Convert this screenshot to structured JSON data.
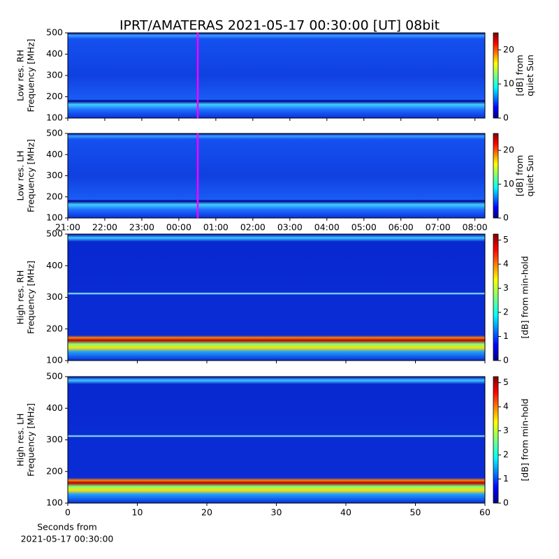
{
  "title": "IPRT/AMATERAS 2021-05-17 00:30:00 [UT]   08bit",
  "chart_data": [
    {
      "type": "heatmap",
      "ylabel": [
        "Low res. RH",
        "Frequency [MHz]"
      ],
      "ylim": [
        100,
        500
      ],
      "yticks": [
        100,
        200,
        300,
        400,
        500
      ],
      "colorbar_label": [
        "[dB] from",
        "quiet Sun"
      ],
      "clim": [
        0,
        25
      ],
      "cticks": [
        0,
        10,
        20
      ]
    },
    {
      "type": "heatmap",
      "ylabel": [
        "Low res. LH",
        "Frequency [MHz]"
      ],
      "ylim": [
        100,
        500
      ],
      "yticks": [
        100,
        200,
        300,
        400,
        500
      ],
      "colorbar_label": [
        "[dB] from",
        "quiet Sun"
      ],
      "clim": [
        0,
        25
      ],
      "cticks": [
        0,
        10,
        20
      ],
      "xlim": [
        21,
        32.27
      ],
      "xticks": [
        {
          "value": 21,
          "label": "21:00"
        },
        {
          "value": 22,
          "label": "22:00"
        },
        {
          "value": 23,
          "label": "23:00"
        },
        {
          "value": 24,
          "label": "00:00"
        },
        {
          "value": 25,
          "label": "01:00"
        },
        {
          "value": 26,
          "label": "02:00"
        },
        {
          "value": 27,
          "label": "03:00"
        },
        {
          "value": 28,
          "label": "04:00"
        },
        {
          "value": 29,
          "label": "05:00"
        },
        {
          "value": 30,
          "label": "06:00"
        },
        {
          "value": 31,
          "label": "07:00"
        },
        {
          "value": 32,
          "label": "08:00"
        }
      ]
    },
    {
      "type": "heatmap",
      "ylabel": [
        "High res. RH",
        "Frequency [MHz]"
      ],
      "ylim": [
        100,
        500
      ],
      "yticks": [
        100,
        200,
        300,
        400,
        500
      ],
      "colorbar_label": [
        "[dB] from min-hold"
      ],
      "clim": [
        0,
        5.25
      ],
      "cticks": [
        0,
        1,
        2,
        3,
        4,
        5
      ]
    },
    {
      "type": "heatmap",
      "ylabel": [
        "High res. LH",
        "Frequency [MHz]"
      ],
      "ylim": [
        100,
        500
      ],
      "yticks": [
        100,
        200,
        300,
        400,
        500
      ],
      "colorbar_label": [
        "[dB] from min-hold"
      ],
      "clim": [
        0,
        5.25
      ],
      "cticks": [
        0,
        1,
        2,
        3,
        4,
        5
      ],
      "xlim": [
        0,
        60
      ],
      "xticks": [
        0,
        10,
        20,
        30,
        40,
        50,
        60
      ],
      "xlabel": [
        "Seconds from",
        "2021-05-17 00:30:00"
      ]
    }
  ]
}
